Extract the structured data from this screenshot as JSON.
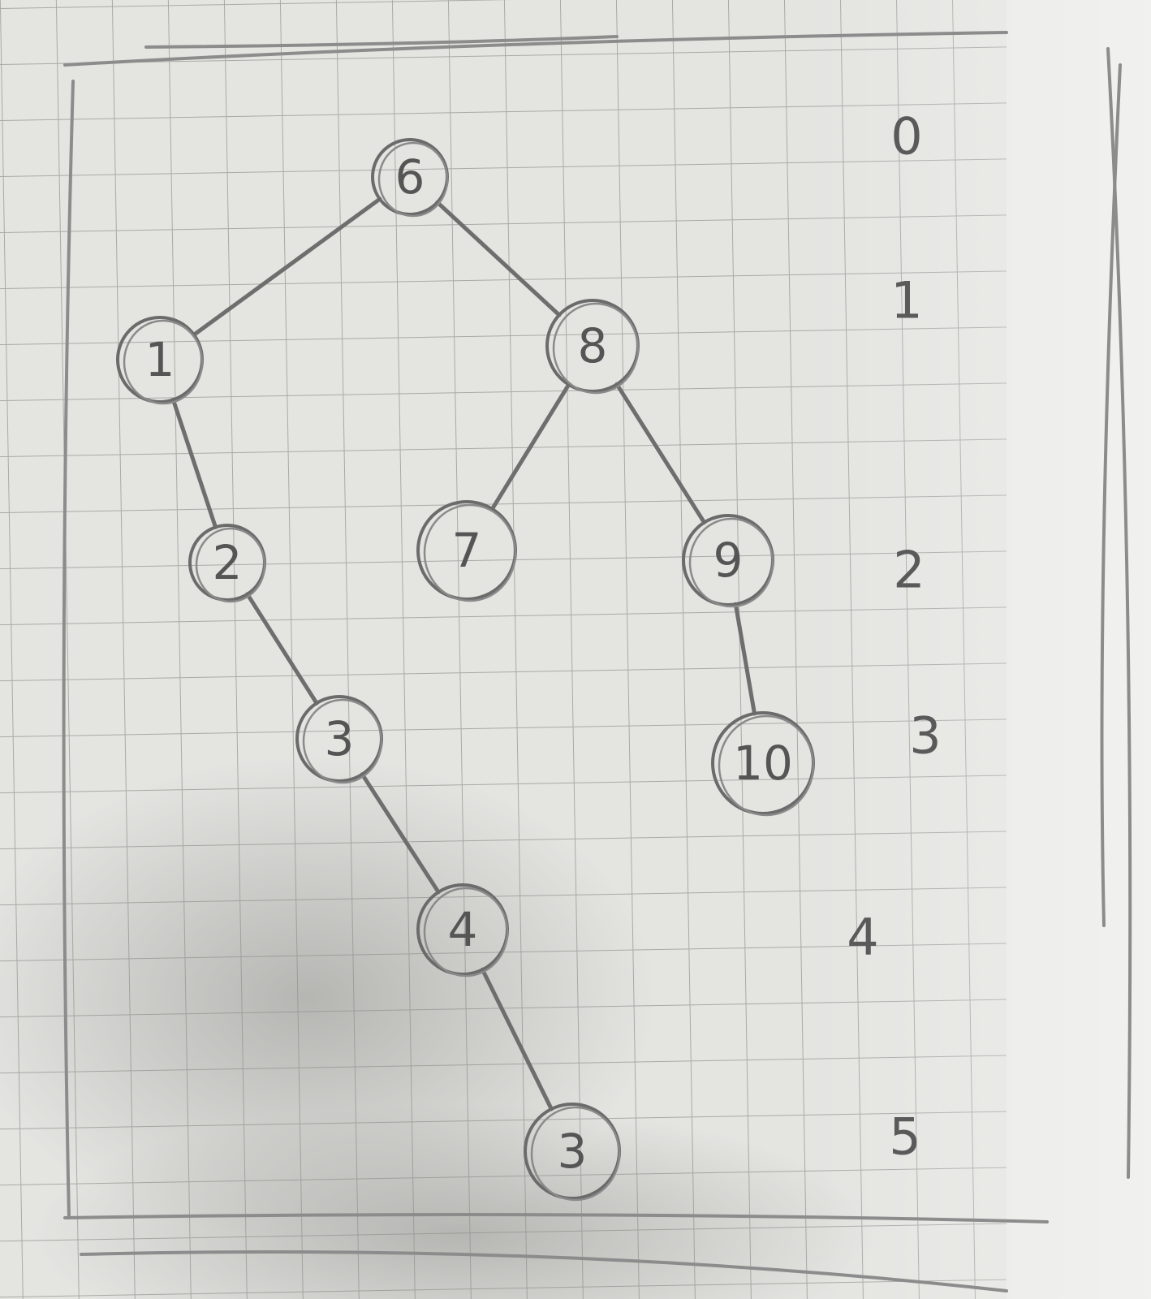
{
  "diagram": {
    "type": "binary-tree",
    "nodes": [
      {
        "id": "n6",
        "label": "6",
        "level": 0
      },
      {
        "id": "n1",
        "label": "1",
        "level": 1
      },
      {
        "id": "n8",
        "label": "8",
        "level": 1
      },
      {
        "id": "n2",
        "label": "2",
        "level": 2
      },
      {
        "id": "n7",
        "label": "7",
        "level": 2
      },
      {
        "id": "n9",
        "label": "9",
        "level": 2
      },
      {
        "id": "n3",
        "label": "3",
        "level": 3
      },
      {
        "id": "n10",
        "label": "10",
        "level": 3
      },
      {
        "id": "n4",
        "label": "4",
        "level": 4
      },
      {
        "id": "n3b",
        "label": "3",
        "level": 5
      }
    ],
    "edges": [
      {
        "from": "n6",
        "to": "n1"
      },
      {
        "from": "n6",
        "to": "n8"
      },
      {
        "from": "n1",
        "to": "n2"
      },
      {
        "from": "n8",
        "to": "n7"
      },
      {
        "from": "n8",
        "to": "n9"
      },
      {
        "from": "n2",
        "to": "n3"
      },
      {
        "from": "n9",
        "to": "n10"
      },
      {
        "from": "n3",
        "to": "n4"
      },
      {
        "from": "n4",
        "to": "n3b"
      }
    ],
    "level_labels": [
      "0",
      "1",
      "2",
      "3",
      "4",
      "5"
    ]
  },
  "colors": {
    "paper": "#e4e4e1",
    "grid": "#a9a9a6",
    "pencil": "#6b6b6b",
    "shadow": "#b9b9b6"
  }
}
